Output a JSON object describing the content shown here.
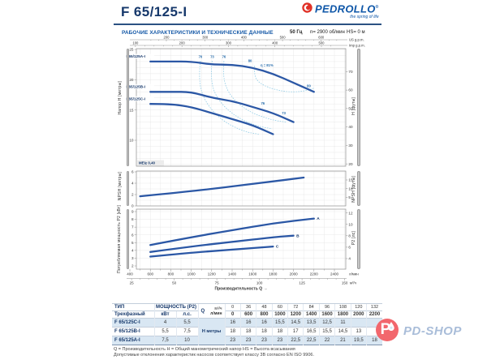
{
  "colors": {
    "navy": "#16386b",
    "accent_blue": "#1458a7",
    "curve_blue": "#2b57a5",
    "efficiency_blue": "#93cde6",
    "table_stripe": "#d9e7f3",
    "brand_red": "#e03127",
    "watermark_pink": "#f2676d",
    "watermark_blue": "#a9bdd9"
  },
  "header": {
    "model": "F 65/125-I",
    "brand": "PEDROLLO",
    "brand_reg": "®",
    "brand_tagline": "the spring of life",
    "section_title": "РАБОЧИЕ ХАРАКТЕРИСТИКИ И ТЕХНИЧЕСКИЕ ДАННЫЕ",
    "frequency": "50 Гц",
    "speed": "n= 2900 об/мин",
    "suction_head": "HS= 0 м"
  },
  "chart_data": [
    {
      "type": "line",
      "name": "head-flow-curves",
      "ylabel_left": "Напор H [метры]",
      "ylabel_right": "H [футы]",
      "ylim": [
        5.7,
        25.1
      ],
      "yticks_left_m": [
        10,
        15,
        20,
        25
      ],
      "yticks_right_ft": [
        20,
        30,
        40,
        50,
        60,
        70
      ],
      "top_axis_1": {
        "unit": "US g.p.m.",
        "ticks": [
          200,
          300,
          400,
          500,
          600
        ]
      },
      "top_axis_2": {
        "unit": "Imp g.p.m.",
        "ticks": [
          100,
          200,
          300,
          400,
          500
        ]
      },
      "mei_label": "MEI≥ 0,40",
      "series": [
        {
          "name": "F65/125A-I",
          "x_lmin": [
            600,
            800,
            1000,
            1200,
            1400,
            1600,
            1800,
            2000,
            2200
          ],
          "y_m": [
            23,
            23,
            23,
            22.5,
            22.5,
            22,
            21,
            19.5,
            18
          ]
        },
        {
          "name": "F65/125B-I",
          "x_lmin": [
            600,
            800,
            1000,
            1200,
            1400,
            1600,
            1800,
            2000
          ],
          "y_m": [
            18,
            18,
            18,
            17,
            16.5,
            15.5,
            14.5,
            13
          ]
        },
        {
          "name": "F65/125C-I",
          "x_lmin": [
            600,
            800,
            1000,
            1200,
            1400,
            1600,
            1800
          ],
          "y_m": [
            16,
            16,
            15.5,
            14.5,
            13.5,
            12.5,
            11
          ]
        }
      ],
      "efficiency_isolines": [
        {
          "value": 70,
          "points": [
            [
              1090,
              23.1
            ],
            [
              1070,
              20.0
            ],
            [
              1130,
              16.4
            ],
            [
              1300,
              13.2
            ],
            [
              1520,
              11.4
            ],
            [
              1660,
              11.0
            ]
          ]
        },
        {
          "value": 73,
          "points": [
            [
              1205,
              23.1
            ],
            [
              1185,
              20.2
            ],
            [
              1250,
              16.8
            ],
            [
              1430,
              13.9
            ],
            [
              1650,
              12.3
            ],
            [
              1790,
              11.9
            ]
          ]
        },
        {
          "value": 76,
          "points": [
            [
              1320,
              23.1
            ],
            [
              1305,
              20.4
            ],
            [
              1380,
              17.2
            ],
            [
              1570,
              14.6
            ],
            [
              1800,
              13.3
            ],
            [
              1930,
              13.0
            ]
          ]
        },
        {
          "value": 81,
          "points": [
            [
              1620,
              22.3
            ],
            [
              1610,
              20.5
            ],
            [
              1700,
              19.0
            ],
            [
              1900,
              18.0
            ],
            [
              2080,
              18.0
            ],
            [
              2200,
              18.6
            ]
          ]
        }
      ],
      "efficiency_labels": [
        {
          "text": "70",
          "q": 1090,
          "h": 23.6
        },
        {
          "text": "73",
          "q": 1205,
          "h": 23.6
        },
        {
          "text": "76",
          "q": 1320,
          "h": 23.6
        },
        {
          "text": "80",
          "q": 1575,
          "h": 22.9
        },
        {
          "text": "η = 81%",
          "q": 1740,
          "h": 22.2
        },
        {
          "text": "80",
          "q": 2150,
          "h": 18.8
        },
        {
          "text": "76",
          "q": 1700,
          "h": 15.9
        },
        {
          "text": "73",
          "q": 1905,
          "h": 14.3
        }
      ]
    },
    {
      "type": "line",
      "name": "npsh-curve",
      "ylabel_left": "NPSH [метры]",
      "ylabel_right": "NPSH [футы]",
      "yticks_left_m": [
        0,
        2,
        4,
        6
      ],
      "yticks_right_ft": [
        5,
        10,
        15
      ],
      "series": [
        {
          "name": "NPSH",
          "x_lmin": [
            500,
            900,
            1300,
            1700,
            2100
          ],
          "y_m": [
            1.7,
            2.4,
            3.2,
            4.1,
            5.0
          ]
        }
      ]
    },
    {
      "type": "line",
      "name": "power-curves",
      "ylabel_left": "Потребляемая мощность P2 [кВт]",
      "ylabel_right": "P2 [лс]",
      "yticks_left_kw": [
        2,
        3,
        4,
        5,
        6,
        7,
        8,
        9
      ],
      "yticks_right_hp": [
        4,
        6,
        8,
        10,
        12
      ],
      "series": [
        {
          "name": "A",
          "x_lmin": [
            600,
            1000,
            1400,
            1800,
            2200
          ],
          "y_kw": [
            4.7,
            5.7,
            6.6,
            7.5,
            8.1
          ]
        },
        {
          "name": "B",
          "x_lmin": [
            600,
            1000,
            1400,
            1800,
            2000
          ],
          "y_kw": [
            3.8,
            4.5,
            5.1,
            5.7,
            5.9
          ]
        },
        {
          "name": "C",
          "x_lmin": [
            600,
            1000,
            1400,
            1800
          ],
          "y_kw": [
            3.2,
            3.7,
            4.1,
            4.5
          ]
        }
      ]
    }
  ],
  "x_axis": {
    "ticks_lmin": [
      400,
      600,
      800,
      1000,
      1200,
      1400,
      1600,
      1800,
      2000,
      2200,
      2400
    ],
    "unit_lmin": "л/мин",
    "ticks_m3h": [
      25,
      50,
      75,
      100,
      125,
      150
    ],
    "unit_m3h": "м³/ч",
    "title": "Производительность Q →"
  },
  "table": {
    "col_type_header": "ТИП",
    "col_type_subheader": "Трехфазный",
    "power_header": "МОЩНОСТЬ (P2)",
    "power_units": [
      "кВт",
      "л.с."
    ],
    "q_label": "Q",
    "q_units": [
      "м³/ч",
      "л/мин"
    ],
    "h_label": "H метры",
    "q_m3h": [
      "0",
      "36",
      "48",
      "60",
      "72",
      "84",
      "96",
      "108",
      "120",
      "132"
    ],
    "q_lmin": [
      "0",
      "600",
      "800",
      "1000",
      "1200",
      "1400",
      "1600",
      "1800",
      "2000",
      "2200"
    ],
    "rows": [
      {
        "type": "F 65/125C-I",
        "kw": "4",
        "hp": "5,5",
        "h": [
          "16",
          "16",
          "16",
          "15,5",
          "14,5",
          "13,5",
          "12,5",
          "11",
          "",
          ""
        ]
      },
      {
        "type": "F 65/125B-I",
        "kw": "5,5",
        "hp": "7,5",
        "h": [
          "18",
          "18",
          "18",
          "18",
          "17",
          "16,5",
          "15,5",
          "14,5",
          "13",
          ""
        ]
      },
      {
        "type": "F 65/125A-I",
        "kw": "7,5",
        "hp": "10",
        "h": [
          "23",
          "23",
          "23",
          "23",
          "22,5",
          "22,5",
          "22",
          "21",
          "19,5",
          "18"
        ]
      }
    ]
  },
  "footnotes": [
    "Q = Производительность    H = Общий манометрический напор    HS = Высота всасывания",
    "Допустимые отклонения характеристик насосов соответствует классу 3B согласно EN ISO 9906."
  ],
  "watermark": {
    "letter": "P",
    "text": "PD-SHOP"
  }
}
